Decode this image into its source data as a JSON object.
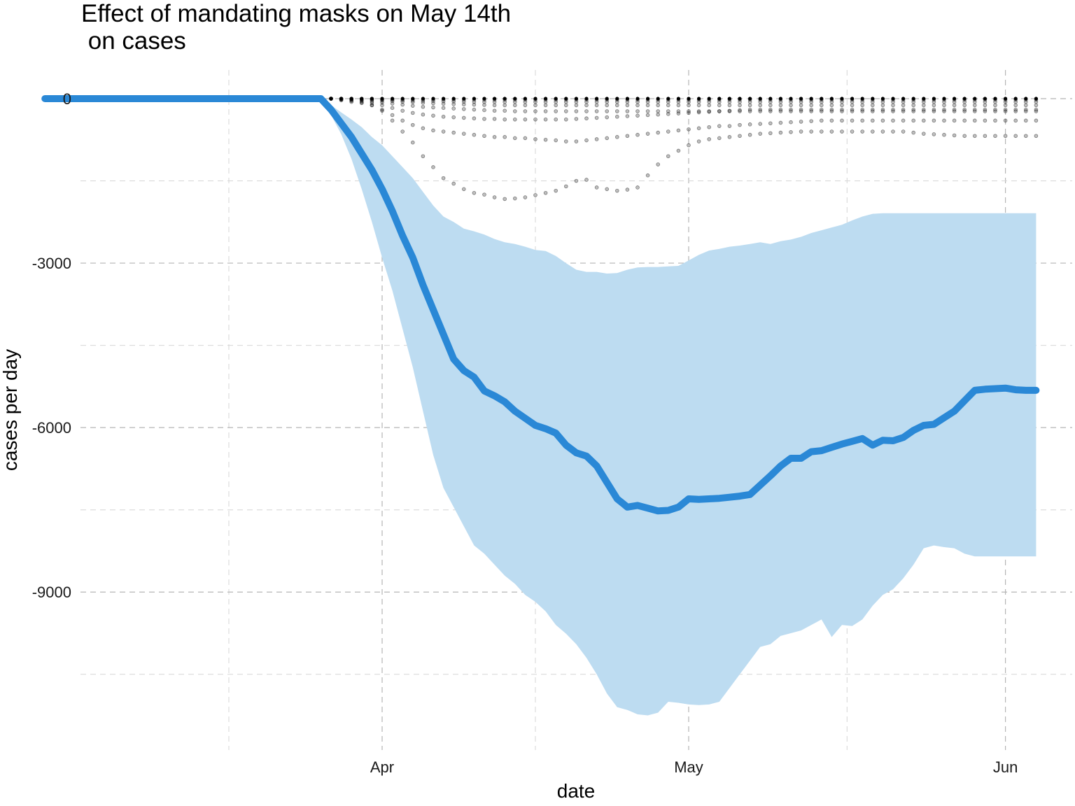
{
  "chart_data": {
    "type": "line",
    "title": "Effect of mandating masks on May 14th\n on cases",
    "xlabel": "date",
    "ylabel": "cases per day",
    "x_tick_labels": [
      "Apr",
      "May",
      "Jun"
    ],
    "y_tick_labels": [
      "0",
      "-3000",
      "-6000",
      "-9000"
    ],
    "y_ticks": [
      0,
      -3000,
      -6000,
      -9000
    ],
    "ylim": [
      -11700,
      600
    ],
    "x_range_days": [
      -30,
      86
    ],
    "x_axis_origin": "Apr 1 = day 0",
    "grid": true,
    "legend": "none",
    "colors": {
      "line": "#2a88d6",
      "band": "#bddcf1",
      "points": "#000000",
      "grid": "#b5b5b5"
    },
    "series": [
      {
        "role": "mean",
        "x": [
          -33,
          -6,
          -5,
          -4,
          -3,
          -2,
          -1,
          0,
          1,
          2,
          3,
          4,
          5,
          6,
          7,
          8,
          9,
          10,
          11,
          12,
          13,
          14,
          15,
          16,
          17,
          18,
          19,
          20,
          21,
          22,
          23,
          24,
          25,
          26,
          27,
          28,
          29,
          30,
          31,
          32,
          33,
          34,
          35,
          36,
          37,
          38,
          39,
          40,
          41,
          42,
          43,
          44,
          45,
          46,
          47,
          48,
          49,
          50,
          51,
          52,
          53,
          54,
          55,
          56,
          57,
          58,
          59,
          60,
          61,
          62,
          63,
          64
        ],
        "y": [
          0,
          0,
          -200,
          -450,
          -700,
          -1000,
          -1300,
          -1650,
          -2050,
          -2500,
          -2900,
          -3400,
          -3850,
          -4300,
          -4750,
          -4960,
          -5080,
          -5330,
          -5420,
          -5530,
          -5700,
          -5830,
          -5960,
          -6020,
          -6100,
          -6320,
          -6460,
          -6520,
          -6700,
          -7000,
          -7300,
          -7450,
          -7420,
          -7470,
          -7520,
          -7510,
          -7450,
          -7300,
          -7310,
          -7300,
          -7290,
          -7270,
          -7250,
          -7220,
          -7050,
          -6880,
          -6700,
          -6560,
          -6560,
          -6440,
          -6420,
          -6360,
          -6300,
          -6250,
          -6200,
          -6320,
          -6230,
          -6240,
          -6180,
          -6050,
          -5960,
          -5940,
          -5820,
          -5700,
          -5510,
          -5320,
          -5300,
          -5290,
          -5280,
          -5310,
          -5320,
          -5320
        ]
      },
      {
        "role": "upper_bound",
        "y": [
          0,
          0,
          -120,
          -250,
          -380,
          -520,
          -700,
          -850,
          -1050,
          -1250,
          -1450,
          -1700,
          -1950,
          -2150,
          -2250,
          -2370,
          -2420,
          -2480,
          -2560,
          -2620,
          -2650,
          -2700,
          -2760,
          -2780,
          -2870,
          -3000,
          -3120,
          -3160,
          -3160,
          -3190,
          -3180,
          -3120,
          -3080,
          -3070,
          -3070,
          -3060,
          -3050,
          -2950,
          -2850,
          -2770,
          -2740,
          -2700,
          -2680,
          -2650,
          -2620,
          -2650,
          -2600,
          -2570,
          -2520,
          -2450,
          -2400,
          -2350,
          -2300,
          -2220,
          -2150,
          -2100,
          -2090,
          -2090,
          -2090,
          -2090,
          -2090,
          -2090,
          -2090,
          -2090,
          -2090,
          -2090,
          -2090,
          -2090,
          -2090,
          -2090,
          -2090,
          -2090
        ]
      },
      {
        "role": "lower_bound",
        "y": [
          0,
          0,
          -300,
          -650,
          -1100,
          -1650,
          -2250,
          -2900,
          -3500,
          -4200,
          -4900,
          -5700,
          -6500,
          -7100,
          -7450,
          -7800,
          -8150,
          -8300,
          -8500,
          -8700,
          -8850,
          -9050,
          -9180,
          -9350,
          -9600,
          -9760,
          -9950,
          -10200,
          -10500,
          -10850,
          -11100,
          -11150,
          -11230,
          -11250,
          -11200,
          -11000,
          -11020,
          -11050,
          -11060,
          -11050,
          -11000,
          -10750,
          -10500,
          -10250,
          -10000,
          -9950,
          -9800,
          -9750,
          -9700,
          -9600,
          -9500,
          -9820,
          -9600,
          -9620,
          -9500,
          -9250,
          -9050,
          -8950,
          -8750,
          -8500,
          -8200,
          -8150,
          -8180,
          -8200,
          -8300,
          -8350,
          -8350,
          -8350,
          -8350,
          -8350,
          -8350,
          -8350
        ]
      }
    ],
    "placebo_paths": [
      [
        0,
        -30,
        -60,
        -80,
        -120,
        -220,
        -400,
        -600,
        -800,
        -1050,
        -1250,
        -1450,
        -1550,
        -1650,
        -1720,
        -1750,
        -1800,
        -1830,
        -1820,
        -1800,
        -1760,
        -1720,
        -1680,
        -1600,
        -1500,
        -1480,
        -1620,
        -1650,
        -1680,
        -1660,
        -1620,
        -1400,
        -1200,
        -1050,
        -950,
        -850,
        -780,
        -740,
        -720,
        -700,
        -680,
        -660,
        -640,
        -630,
        -620,
        -610,
        -600,
        -600,
        -600,
        -600,
        -600,
        -600,
        -600,
        -600,
        -600,
        -600,
        -600,
        -620,
        -640,
        -650,
        -660,
        -670,
        -680,
        -680,
        -680,
        -680,
        -680,
        -680,
        -680,
        -680
      ],
      [
        0,
        -20,
        -40,
        -70,
        -120,
        -200,
        -300,
        -400,
        -480,
        -540,
        -580,
        -600,
        -620,
        -640,
        -660,
        -680,
        -700,
        -700,
        -720,
        -720,
        -740,
        -750,
        -760,
        -780,
        -780,
        -760,
        -740,
        -720,
        -700,
        -680,
        -660,
        -640,
        -620,
        -600,
        -580,
        -560,
        -540,
        -520,
        -500,
        -500,
        -480,
        -470,
        -460,
        -450,
        -440,
        -430,
        -420,
        -410,
        -400,
        -400,
        -400,
        -400,
        -400,
        -400,
        -400,
        -400,
        -400,
        -400,
        -400,
        -400,
        -400,
        -400,
        -400,
        -400,
        -400,
        -400,
        -400,
        -400,
        -400,
        -400
      ],
      [
        0,
        -10,
        -25,
        -45,
        -80,
        -120,
        -170,
        -220,
        -260,
        -290,
        -310,
        -330,
        -340,
        -350,
        -360,
        -370,
        -370,
        -380,
        -380,
        -380,
        -380,
        -380,
        -380,
        -380,
        -370,
        -360,
        -350,
        -340,
        -330,
        -320,
        -310,
        -300,
        -290,
        -280,
        -270,
        -260,
        -250,
        -240,
        -230,
        -220,
        -210,
        -200,
        -200,
        -200,
        -200,
        -200,
        -200,
        -200,
        -200,
        -200,
        -200,
        -200,
        -200,
        -200,
        -200,
        -200,
        -200,
        -200,
        -200,
        -200,
        -200,
        -200,
        -200,
        -200,
        -200,
        -200,
        -200,
        -200,
        -200,
        -200
      ],
      [
        0,
        -5,
        -15,
        -30,
        -50,
        -70,
        -90,
        -110,
        -130,
        -150,
        -160,
        -170,
        -180,
        -190,
        -200,
        -210,
        -220,
        -220,
        -230,
        -230,
        -230,
        -230,
        -230,
        -230,
        -230,
        -230,
        -230,
        -230,
        -230,
        -230,
        -230,
        -230,
        -230,
        -230,
        -230,
        -230,
        -230,
        -230,
        -230,
        -230,
        -230,
        -230,
        -230,
        -230,
        -230,
        -230,
        -230,
        -230,
        -230,
        -230,
        -230,
        -230,
        -230,
        -230,
        -230,
        -230,
        -230,
        -230,
        -230,
        -230,
        -230,
        -230,
        -230,
        -230,
        -230,
        -230,
        -230,
        -230,
        -230,
        -230
      ],
      [
        0,
        -3,
        -8,
        -15,
        -25,
        -35,
        -45,
        -55,
        -65,
        -75,
        -85,
        -95,
        -100,
        -105,
        -110,
        -115,
        -120,
        -120,
        -120,
        -120,
        -120,
        -120,
        -120,
        -120,
        -120,
        -120,
        -120,
        -120,
        -120,
        -120,
        -120,
        -120,
        -120,
        -120,
        -120,
        -120,
        -120,
        -120,
        -120,
        -120,
        -120,
        -120,
        -120,
        -120,
        -120,
        -120,
        -120,
        -120,
        -120,
        -120,
        -120,
        -120,
        -120,
        -120,
        -120,
        -120,
        -120,
        -120,
        -120,
        -120,
        -120,
        -120,
        -120,
        -120,
        -120,
        -120,
        -120,
        -120,
        -120,
        -120
      ],
      [
        0,
        -2,
        -4,
        -8,
        -12,
        -18,
        -24,
        -30,
        -36,
        -40,
        -44,
        -48,
        -52,
        -55,
        -58,
        -60,
        -60,
        -60,
        -60,
        -60,
        -60,
        -60,
        -60,
        -60,
        -60,
        -60,
        -60,
        -60,
        -60,
        -60,
        -60,
        -60,
        -60,
        -60,
        -60,
        -60,
        -60,
        -60,
        -60,
        -60,
        -60,
        -60,
        -60,
        -60,
        -60,
        -60,
        -60,
        -60,
        -60,
        -60,
        -60,
        -60,
        -60,
        -60,
        -60,
        -60,
        -60,
        -60,
        -60,
        -60,
        -60,
        -60,
        -60,
        -60,
        -60,
        -60,
        -60,
        -60,
        -60,
        -60
      ],
      [
        0,
        0,
        -1,
        -2,
        -3,
        -5,
        -7,
        -9,
        -11,
        -13,
        -15,
        -17,
        -19,
        -20,
        -20,
        -20,
        -20,
        -20,
        -20,
        -20,
        -20,
        -20,
        -20,
        -20,
        -20,
        -20,
        -20,
        -20,
        -20,
        -20,
        -20,
        -20,
        -20,
        -20,
        -20,
        -20,
        -20,
        -20,
        -20,
        -20,
        -20,
        -20,
        -20,
        -20,
        -20,
        -20,
        -20,
        -20,
        -20,
        -20,
        -20,
        -20,
        -20,
        -20,
        -20,
        -20,
        -20,
        -20,
        -20,
        -20,
        -20,
        -20,
        -20,
        -20,
        -20,
        -20,
        -20,
        -20,
        -20,
        -20
      ]
    ]
  }
}
